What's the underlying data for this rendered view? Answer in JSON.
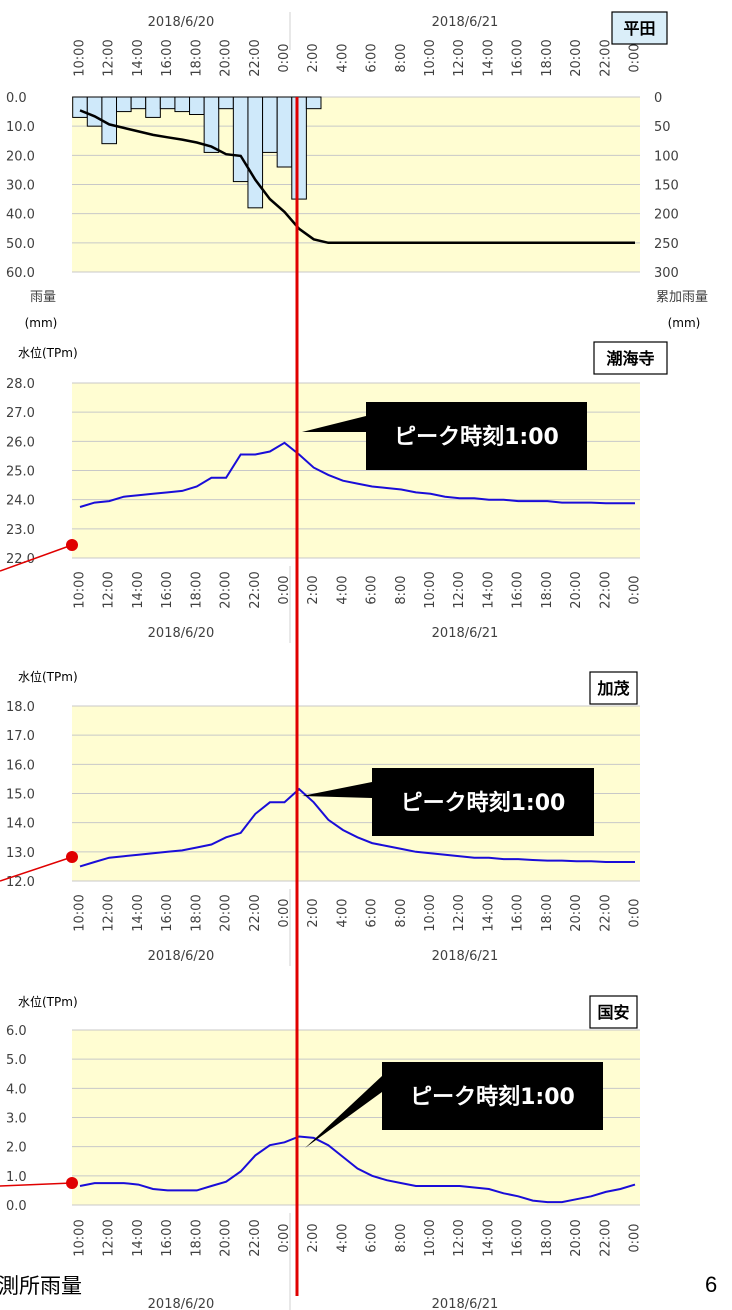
{
  "page_number": "6",
  "bottom_caption": "測所雨量",
  "chart_data": [
    {
      "type": "bar+line",
      "station": "平田",
      "date_labels": [
        "2018/6/20",
        "2018/6/21"
      ],
      "x_ticks": [
        "10:00",
        "12:00",
        "14:00",
        "16:00",
        "18:00",
        "20:00",
        "22:00",
        "0:00",
        "2:00",
        "4:00",
        "6:00",
        "8:00",
        "10:00",
        "12:00",
        "14:00",
        "16:00",
        "18:00",
        "20:00",
        "22:00",
        "0:00"
      ],
      "left_axis": {
        "label": "雨量",
        "unit": "(mm)",
        "min": 0,
        "max": 60,
        "ticks": [
          "0.0",
          "10.0",
          "20.0",
          "30.0",
          "40.0",
          "50.0",
          "60.0"
        ],
        "inverted": true
      },
      "right_axis": {
        "label": "累加雨量",
        "unit": "(mm)",
        "min": 0,
        "max": 300,
        "ticks": [
          "0",
          "50",
          "100",
          "150",
          "200",
          "250",
          "300"
        ],
        "inverted": true
      },
      "hourly_rain": [
        7,
        10,
        16,
        5,
        4,
        7,
        4,
        5,
        6,
        19,
        4,
        29,
        38,
        19,
        24,
        35,
        4,
        0,
        0,
        0,
        0,
        0,
        0,
        0,
        0,
        0,
        0,
        0,
        0,
        0,
        0,
        0,
        0,
        0,
        0,
        0,
        0,
        0,
        0
      ],
      "cumulative": [
        23,
        33,
        47,
        53,
        59,
        65,
        69,
        73,
        78,
        85,
        98,
        101,
        142,
        175,
        197,
        226,
        244,
        250,
        250,
        250,
        250,
        250,
        250,
        250,
        250,
        250,
        250,
        250,
        250,
        250,
        250,
        250,
        250,
        250,
        250,
        250,
        250,
        250,
        250
      ]
    },
    {
      "type": "line",
      "station": "潮海寺",
      "y_label": "水位(TPm)",
      "y_min": 22,
      "y_max": 28,
      "y_ticks": [
        "22.0",
        "23.0",
        "24.0",
        "25.0",
        "26.0",
        "27.0",
        "28.0"
      ],
      "annotation": "ピーク時刻1:00",
      "date_labels": [
        "2018/6/20",
        "2018/6/21"
      ],
      "x_ticks": [
        "10:00",
        "12:00",
        "14:00",
        "16:00",
        "18:00",
        "20:00",
        "22:00",
        "0:00",
        "2:00",
        "4:00",
        "6:00",
        "8:00",
        "10:00",
        "12:00",
        "14:00",
        "16:00",
        "18:00",
        "20:00",
        "22:00",
        "0:00"
      ],
      "values": [
        23.75,
        23.9,
        23.95,
        24.1,
        24.15,
        24.2,
        24.25,
        24.3,
        24.45,
        24.75,
        24.75,
        25.55,
        25.55,
        25.65,
        25.95,
        25.55,
        25.1,
        24.85,
        24.65,
        24.55,
        24.45,
        24.4,
        24.35,
        24.25,
        24.2,
        24.1,
        24.05,
        24.05,
        24.0,
        24.0,
        23.95,
        23.95,
        23.95,
        23.9,
        23.9,
        23.9,
        23.88,
        23.88,
        23.88
      ]
    },
    {
      "type": "line",
      "station": "加茂",
      "y_label": "水位(TPm)",
      "y_min": 12,
      "y_max": 18,
      "y_ticks": [
        "12.0",
        "13.0",
        "14.0",
        "15.0",
        "16.0",
        "17.0",
        "18.0"
      ],
      "annotation": "ピーク時刻1:00",
      "date_labels": [
        "2018/6/20",
        "2018/6/21"
      ],
      "x_ticks": [
        "10:00",
        "12:00",
        "14:00",
        "16:00",
        "18:00",
        "20:00",
        "22:00",
        "0:00",
        "2:00",
        "4:00",
        "6:00",
        "8:00",
        "10:00",
        "12:00",
        "14:00",
        "16:00",
        "18:00",
        "20:00",
        "22:00",
        "0:00"
      ],
      "values": [
        12.5,
        12.65,
        12.8,
        12.85,
        12.9,
        12.95,
        13.0,
        13.05,
        13.15,
        13.25,
        13.5,
        13.65,
        14.3,
        14.7,
        14.7,
        15.15,
        14.7,
        14.1,
        13.75,
        13.5,
        13.3,
        13.2,
        13.1,
        13.0,
        12.95,
        12.9,
        12.85,
        12.8,
        12.8,
        12.75,
        12.75,
        12.72,
        12.7,
        12.7,
        12.68,
        12.68,
        12.65,
        12.65,
        12.65
      ]
    },
    {
      "type": "line",
      "station": "国安",
      "y_label": "水位(TPm)",
      "y_min": 0,
      "y_max": 6,
      "y_ticks": [
        "0.0",
        "1.0",
        "2.0",
        "3.0",
        "4.0",
        "5.0",
        "6.0"
      ],
      "annotation": "ピーク時刻1:00",
      "date_labels": [
        "2018/6/20",
        "2018/6/21"
      ],
      "x_ticks": [
        "10:00",
        "12:00",
        "14:00",
        "16:00",
        "18:00",
        "20:00",
        "22:00",
        "0:00",
        "2:00",
        "4:00",
        "6:00",
        "8:00",
        "10:00",
        "12:00",
        "14:00",
        "16:00",
        "18:00",
        "20:00",
        "22:00",
        "0:00"
      ],
      "values": [
        0.65,
        0.75,
        0.75,
        0.75,
        0.7,
        0.55,
        0.5,
        0.5,
        0.5,
        0.65,
        0.8,
        1.15,
        1.7,
        2.05,
        2.15,
        2.35,
        2.3,
        2.05,
        1.65,
        1.25,
        1.0,
        0.85,
        0.75,
        0.65,
        0.65,
        0.65,
        0.65,
        0.6,
        0.55,
        0.4,
        0.3,
        0.15,
        0.1,
        0.1,
        0.2,
        0.3,
        0.45,
        0.55,
        0.7
      ]
    }
  ],
  "colors": {
    "plot_bg": "#FFFDD2",
    "rain_bar": "#CFE9FA",
    "water_line": "#1A0DD8",
    "cumulative_line": "#000000",
    "peak_marker": "#E00000"
  }
}
